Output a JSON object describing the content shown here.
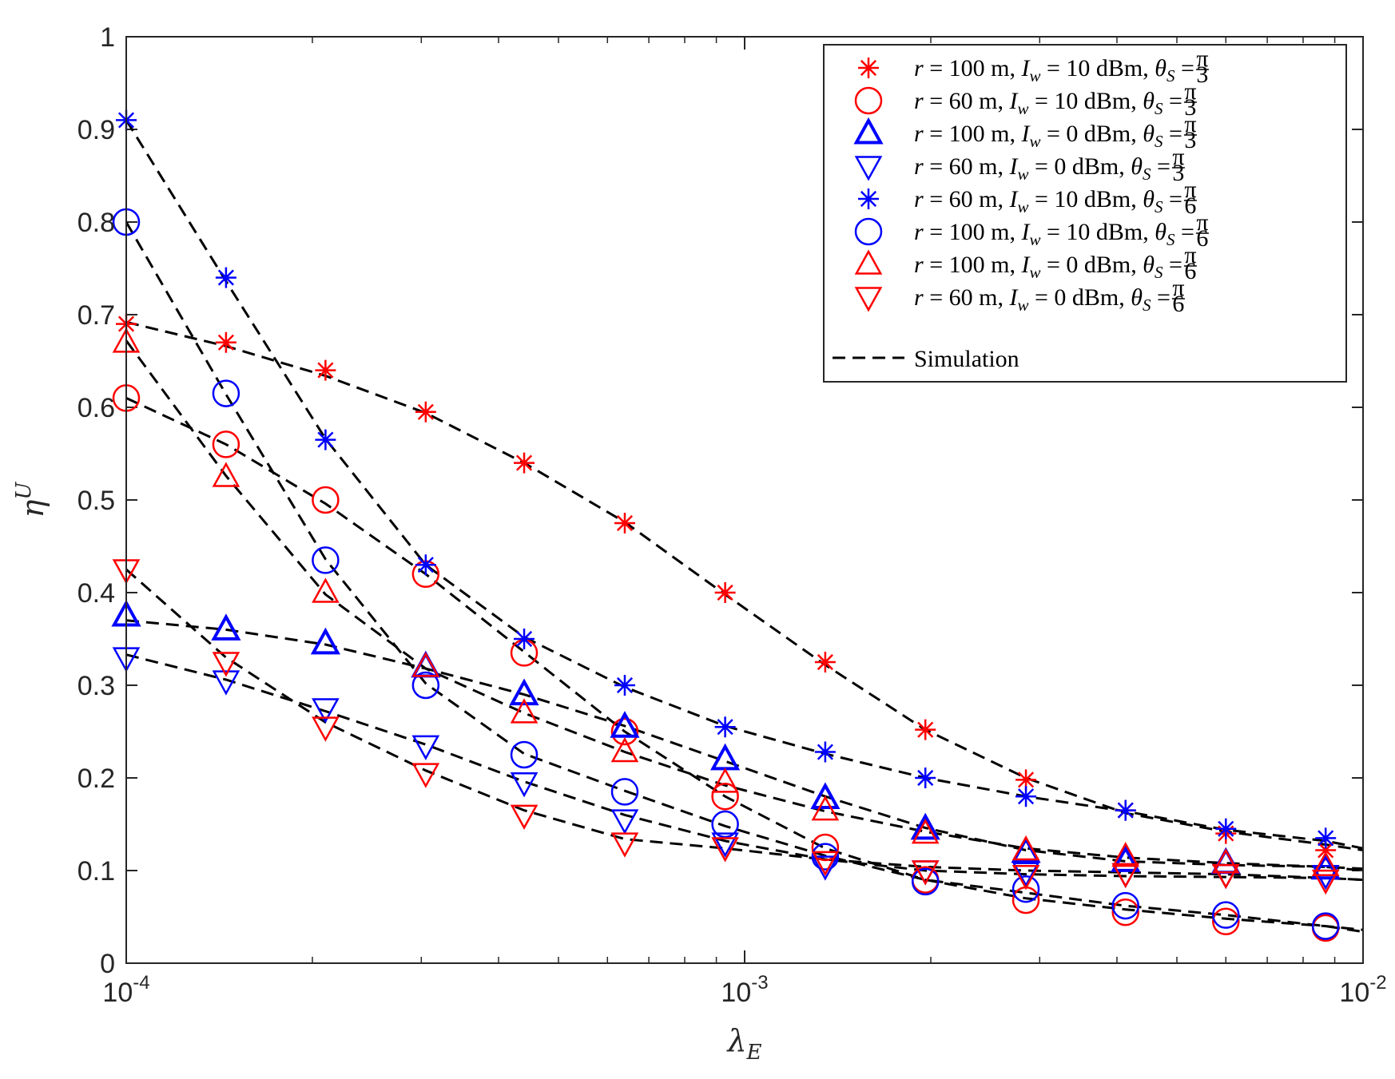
{
  "chart_data": {
    "type": "scatter",
    "title": "",
    "xlabel": "λ",
    "xlabel_sub": "E",
    "ylabel": "η",
    "ylabel_sup": "U",
    "xscale": "log",
    "xlim": [
      0.0001,
      0.01
    ],
    "ylim": [
      0,
      1
    ],
    "xticks": [
      {
        "base": "10",
        "exp": "-4"
      },
      {
        "base": "10",
        "exp": "-3"
      },
      {
        "base": "10",
        "exp": "-2"
      }
    ],
    "yticks": [
      "0",
      "0.1",
      "0.2",
      "0.3",
      "0.4",
      "0.5",
      "0.6",
      "0.7",
      "0.8",
      "0.9",
      "1"
    ],
    "legend_position": "top-right",
    "x": [
      0.0001,
      0.000145,
      0.00021,
      0.000305,
      0.00044,
      0.00064,
      0.00093,
      0.00135,
      0.00196,
      0.00285,
      0.00413,
      0.006,
      0.0087
    ],
    "series": [
      {
        "name": "r = 100 m, I_w = 10 dBm, θ_S = π/3",
        "parts": [
          "r",
          "=",
          "100",
          "m,",
          "I",
          "w",
          "=",
          "10",
          "dBm,",
          "θ",
          "S",
          "=",
          "π",
          "3"
        ],
        "color": "#ff0000",
        "marker": "star",
        "values": [
          0.69,
          0.67,
          0.64,
          0.595,
          0.54,
          0.475,
          0.4,
          0.325,
          0.252,
          0.198,
          0.165,
          0.14,
          0.122
        ],
        "sim": [
          0.692,
          0.666,
          0.634,
          0.594,
          0.54,
          0.476,
          0.398,
          0.322,
          0.252,
          0.2,
          0.162,
          0.142,
          0.128,
          0.122
        ]
      },
      {
        "name": "r = 60 m, I_w = 10 dBm, θ_S = π/3",
        "parts": [
          "r",
          "=",
          "60",
          "m,",
          "I",
          "w",
          "=",
          "10",
          "dBm,",
          "θ",
          "S",
          "=",
          "π",
          "3"
        ],
        "color": "#ff0000",
        "marker": "circle",
        "values": [
          0.61,
          0.56,
          0.5,
          0.42,
          0.335,
          0.25,
          0.18,
          0.125,
          0.09,
          0.068,
          0.055,
          0.045,
          0.038
        ],
        "sim": [
          0.61,
          0.56,
          0.496,
          0.42,
          0.336,
          0.25,
          0.18,
          0.124,
          0.09,
          0.07,
          0.058,
          0.048,
          0.04,
          0.036
        ]
      },
      {
        "name": "r = 100 m, I_w = 0 dBm, θ_S = π/3",
        "parts": [
          "r",
          "=",
          "100",
          "m,",
          "I",
          "w",
          "=",
          "0",
          "dBm,",
          "θ",
          "S",
          "=",
          "π",
          "3"
        ],
        "color": "#0000ff",
        "marker": "triangle-up-bold",
        "values": [
          0.375,
          0.36,
          0.345,
          0.32,
          0.29,
          0.255,
          0.22,
          0.178,
          0.145,
          0.12,
          0.11,
          0.108,
          0.102
        ],
        "sim": [
          0.37,
          0.36,
          0.344,
          0.318,
          0.29,
          0.256,
          0.218,
          0.18,
          0.146,
          0.122,
          0.11,
          0.106,
          0.104,
          0.102
        ]
      },
      {
        "name": "r = 60 m, I_w = 0 dBm, θ_S = π/3",
        "parts": [
          "r",
          "=",
          "60",
          "m,",
          "I",
          "w",
          "=",
          "0",
          "dBm,",
          "θ",
          "S",
          "=",
          "π",
          "3"
        ],
        "color": "#0000ff",
        "marker": "triangle-down",
        "values": [
          0.33,
          0.305,
          0.275,
          0.235,
          0.195,
          0.155,
          0.13,
          0.105,
          0.1,
          0.098,
          0.097,
          0.096,
          0.095
        ],
        "sim": [
          0.333,
          0.306,
          0.272,
          0.236,
          0.196,
          0.16,
          0.132,
          0.112,
          0.1,
          0.096,
          0.094,
          0.093,
          0.092,
          0.09
        ]
      },
      {
        "name": "r = 60 m, I_w = 10 dBm, θ_S = π/6",
        "parts": [
          "r",
          "=",
          "60",
          "m,",
          "I",
          "w",
          "=",
          "10",
          "dBm,",
          "θ",
          "S",
          "=",
          "π",
          "6"
        ],
        "color": "#0000ff",
        "marker": "star",
        "values": [
          0.91,
          0.74,
          0.565,
          0.43,
          0.35,
          0.3,
          0.255,
          0.228,
          0.2,
          0.18,
          0.165,
          0.145,
          0.135
        ],
        "sim": [
          0.91,
          0.736,
          0.566,
          0.43,
          0.352,
          0.298,
          0.256,
          0.226,
          0.2,
          0.18,
          0.164,
          0.144,
          0.132,
          0.124
        ]
      },
      {
        "name": "r = 100 m, I_w = 10 dBm, θ_S = π/6",
        "parts": [
          "r",
          "=",
          "100",
          "m,",
          "I",
          "w",
          "=",
          "10",
          "dBm,",
          "θ",
          "S",
          "=",
          "π",
          "6"
        ],
        "color": "#0000ff",
        "marker": "circle",
        "values": [
          0.8,
          0.615,
          0.435,
          0.3,
          0.225,
          0.185,
          0.15,
          0.115,
          0.088,
          0.08,
          0.062,
          0.052,
          0.04
        ],
        "sim": [
          0.8,
          0.614,
          0.436,
          0.302,
          0.226,
          0.186,
          0.148,
          0.116,
          0.09,
          0.076,
          0.062,
          0.052,
          0.04,
          0.034
        ]
      },
      {
        "name": "r = 100 m, I_w = 0 dBm, θ_S = π/6",
        "parts": [
          "r",
          "=",
          "100",
          "m,",
          "I",
          "w",
          "=",
          "0",
          "dBm,",
          "θ",
          "S",
          "=",
          "π",
          "6"
        ],
        "color": "#ff0000",
        "marker": "triangle-up",
        "values": [
          0.67,
          0.525,
          0.4,
          0.32,
          0.27,
          0.228,
          0.195,
          0.165,
          0.14,
          0.122,
          0.115,
          0.108,
          0.105
        ],
        "sim": [
          0.672,
          0.526,
          0.398,
          0.318,
          0.27,
          0.228,
          0.192,
          0.164,
          0.142,
          0.124,
          0.114,
          0.108,
          0.104,
          0.1
        ]
      },
      {
        "name": "r = 60 m, I_w = 0 dBm, θ_S = π/6",
        "parts": [
          "r",
          "=",
          "60",
          "m,",
          "I",
          "w",
          "=",
          "0",
          "dBm,",
          "θ",
          "S",
          "=",
          "π",
          "6"
        ],
        "color": "#ff0000",
        "marker": "triangle-down",
        "values": [
          0.425,
          0.325,
          0.255,
          0.205,
          0.16,
          0.13,
          0.125,
          0.11,
          0.1,
          0.095,
          0.097,
          0.096,
          0.09
        ],
        "sim": [
          0.425,
          0.33,
          0.26,
          0.208,
          0.165,
          0.134,
          0.124,
          0.112,
          0.104,
          0.1,
          0.098,
          0.096,
          0.092,
          0.09
        ]
      }
    ],
    "sim_x": [
      0.0001,
      0.000145,
      0.00021,
      0.000305,
      0.00044,
      0.00064,
      0.00093,
      0.00135,
      0.00196,
      0.00285,
      0.00413,
      0.006,
      0.0087,
      0.01
    ],
    "sim_legend": "Simulation",
    "sim_color": "#000000"
  }
}
